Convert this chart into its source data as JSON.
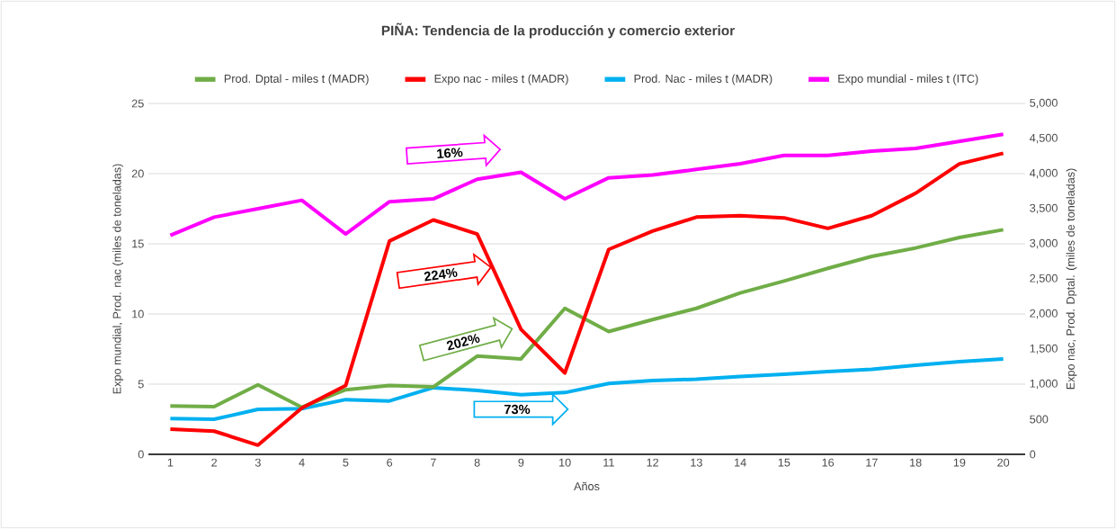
{
  "chart_data": {
    "type": "line",
    "title": "PIÑA: Tendencia de la producción y comercio exterior",
    "xlabel": "Años",
    "ylabel": "Expo mundial, Prod. nac (miles de toneladas)",
    "y2label": "Expo nac, Prod. Dptal. (miles de toneladas)",
    "categories": [
      "1",
      "2",
      "3",
      "4",
      "5",
      "6",
      "7",
      "8",
      "9",
      "10",
      "11",
      "12",
      "13",
      "14",
      "15",
      "16",
      "17",
      "18",
      "19",
      "20"
    ],
    "series": [
      {
        "name": "Prod. Dptal - miles t (MADR)",
        "color": "#70ad47",
        "axis": "y2",
        "values": [
          690,
          680,
          990,
          670,
          920,
          980,
          960,
          1400,
          1360,
          2080,
          1750,
          1920,
          2080,
          2300,
          2470,
          2650,
          2820,
          2940,
          3090,
          3200
        ]
      },
      {
        "name": "Expo nac - miles t (MADR)",
        "color": "#ff0000",
        "axis": "y2",
        "values": [
          360,
          330,
          130,
          660,
          980,
          3040,
          3340,
          3140,
          1780,
          1160,
          2920,
          3180,
          3380,
          3400,
          3370,
          3220,
          3400,
          3720,
          4140,
          4290
        ]
      },
      {
        "name": "Prod. Nac - miles t (MADR)",
        "color": "#00b0f0",
        "values": [
          2.55,
          2.5,
          3.2,
          3.25,
          3.9,
          3.8,
          4.75,
          4.55,
          4.25,
          4.4,
          5.05,
          5.25,
          5.35,
          5.55,
          5.7,
          5.9,
          6.05,
          6.35,
          6.6,
          6.8
        ]
      },
      {
        "name": "Expo mundial - miles t (ITC)",
        "color": "#ff00ff",
        "values": [
          15.6,
          16.9,
          17.5,
          18.1,
          15.7,
          18.0,
          18.2,
          19.6,
          20.1,
          18.2,
          19.7,
          19.9,
          20.3,
          20.7,
          21.3,
          21.3,
          21.6,
          21.8,
          22.3,
          22.8
        ]
      }
    ],
    "ylim": [
      0,
      25
    ],
    "yticks": [
      0,
      5,
      10,
      15,
      20,
      25
    ],
    "y2lim": [
      0,
      5000
    ],
    "y2ticks": [
      {
        "value": 0,
        "label": "0"
      },
      {
        "value": 500,
        "label": "500"
      },
      {
        "value": 1000,
        "label": "1,000"
      },
      {
        "value": 1500,
        "label": "1,500"
      },
      {
        "value": 2000,
        "label": "2,000"
      },
      {
        "value": 2500,
        "label": "2,500"
      },
      {
        "value": 3000,
        "label": "3,000"
      },
      {
        "value": 3500,
        "label": "3,500"
      },
      {
        "value": 4000,
        "label": "4,000"
      },
      {
        "value": 4500,
        "label": "4,500"
      },
      {
        "value": 5000,
        "label": "5,000"
      }
    ],
    "grid": "y",
    "legend": "top",
    "marker": "none",
    "line_style": "solid",
    "annotations": [
      "16%",
      "224%",
      "202%",
      "73%"
    ]
  }
}
